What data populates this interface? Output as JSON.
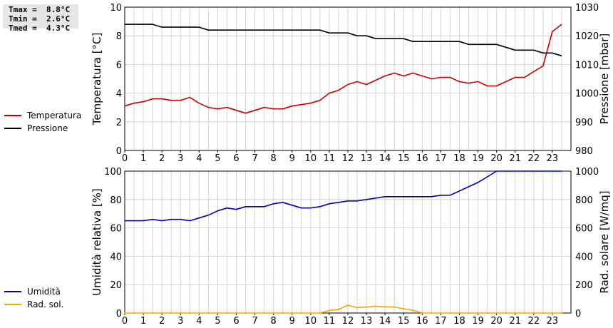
{
  "stats": {
    "tmax": "Tmax =  8.8°C",
    "tmin": "Tmin =  2.6°C",
    "tmed": "Tmed =  4.3°C"
  },
  "legend_top": [
    {
      "label": "Temperatura",
      "color": "#cc0000"
    },
    {
      "label": "Pressione",
      "color": "#000000"
    }
  ],
  "legend_bottom": [
    {
      "label": "Umidità",
      "color": "#0000bb"
    },
    {
      "label": "Rad. sol.",
      "color": "#ffa500"
    }
  ],
  "chart_data": [
    {
      "type": "line",
      "ylabel": "Temperatura [°C]",
      "y2label": "Pressione [mbar]",
      "xlim": [
        0,
        24
      ],
      "ylim": [
        0,
        10
      ],
      "y2lim": [
        980,
        1030
      ],
      "x_ticks": [
        "0",
        "1",
        "2",
        "3",
        "4",
        "5",
        "6",
        "7",
        "8",
        "9",
        "10",
        "11",
        "12",
        "13",
        "14",
        "15",
        "16",
        "17",
        "18",
        "19",
        "20",
        "21",
        "22",
        "23"
      ],
      "y_ticks": [
        "0",
        "2",
        "4",
        "6",
        "8",
        "10"
      ],
      "y2_ticks": [
        "980",
        "990",
        "1000",
        "1010",
        "1020",
        "1030"
      ],
      "grid": true,
      "series": [
        {
          "name": "Temperatura",
          "axis": "left",
          "color": "#cc0000",
          "x": [
            0,
            0.5,
            1,
            1.5,
            2,
            2.5,
            3,
            3.5,
            4,
            4.5,
            5,
            5.5,
            6,
            6.5,
            7,
            7.5,
            8,
            8.5,
            9,
            9.5,
            10,
            10.5,
            11,
            11.5,
            12,
            12.5,
            13,
            13.5,
            14,
            14.5,
            15,
            15.5,
            16,
            16.5,
            17,
            17.5,
            18,
            18.5,
            19,
            19.5,
            20,
            20.5,
            21,
            21.5,
            22,
            22.5,
            23,
            23.5
          ],
          "values": [
            3.1,
            3.3,
            3.4,
            3.6,
            3.6,
            3.5,
            3.5,
            3.7,
            3.3,
            3.0,
            2.9,
            3.0,
            2.8,
            2.6,
            2.8,
            3.0,
            2.9,
            2.9,
            3.1,
            3.2,
            3.3,
            3.5,
            4.0,
            4.2,
            4.6,
            4.8,
            4.6,
            4.9,
            5.2,
            5.4,
            5.2,
            5.4,
            5.2,
            5.0,
            5.1,
            5.1,
            4.8,
            4.7,
            4.8,
            4.5,
            4.5,
            4.8,
            5.1,
            5.1,
            5.5,
            5.9,
            8.3,
            8.8
          ]
        },
        {
          "name": "Pressione",
          "axis": "right",
          "color": "#000000",
          "x": [
            0,
            0.5,
            1,
            1.5,
            2,
            2.5,
            3,
            3.5,
            4,
            4.5,
            5,
            5.5,
            6,
            6.5,
            7,
            7.5,
            8,
            8.5,
            9,
            9.5,
            10,
            10.5,
            11,
            11.5,
            12,
            12.5,
            13,
            13.5,
            14,
            14.5,
            15,
            15.5,
            16,
            16.5,
            17,
            17.5,
            18,
            18.5,
            19,
            19.5,
            20,
            20.5,
            21,
            21.5,
            22,
            22.5,
            23,
            23.5
          ],
          "values": [
            1024,
            1024,
            1024,
            1024,
            1023,
            1023,
            1023,
            1023,
            1023,
            1022,
            1022,
            1022,
            1022,
            1022,
            1022,
            1022,
            1022,
            1022,
            1022,
            1022,
            1022,
            1022,
            1021,
            1021,
            1021,
            1020,
            1020,
            1019,
            1019,
            1019,
            1019,
            1018,
            1018,
            1018,
            1018,
            1018,
            1018,
            1017,
            1017,
            1017,
            1017,
            1016,
            1015,
            1015,
            1015,
            1014,
            1014,
            1013
          ]
        }
      ]
    },
    {
      "type": "line",
      "ylabel": "Umidità relativa [%]",
      "y2label": "Rad. solare [W/mq]",
      "xlim": [
        0,
        24
      ],
      "ylim": [
        0,
        100
      ],
      "y2lim": [
        0,
        1000
      ],
      "x_ticks": [
        "0",
        "1",
        "2",
        "3",
        "4",
        "5",
        "6",
        "7",
        "8",
        "9",
        "10",
        "11",
        "12",
        "13",
        "14",
        "15",
        "16",
        "17",
        "18",
        "19",
        "20",
        "21",
        "22",
        "23"
      ],
      "y_ticks": [
        "0",
        "20",
        "40",
        "60",
        "80",
        "100"
      ],
      "y2_ticks": [
        "0",
        "200",
        "400",
        "600",
        "800",
        "1000"
      ],
      "grid": true,
      "series": [
        {
          "name": "Umidità",
          "axis": "left",
          "color": "#0000bb",
          "x": [
            0,
            0.5,
            1,
            1.5,
            2,
            2.5,
            3,
            3.5,
            4,
            4.5,
            5,
            5.5,
            6,
            6.5,
            7,
            7.5,
            8,
            8.5,
            9,
            9.5,
            10,
            10.5,
            11,
            11.5,
            12,
            12.5,
            13,
            13.5,
            14,
            14.5,
            15,
            15.5,
            16,
            16.5,
            17,
            17.5,
            18,
            18.5,
            19,
            19.5,
            20,
            20.5,
            21,
            21.5,
            22,
            22.5,
            23,
            23.5
          ],
          "values": [
            65,
            65,
            65,
            66,
            65,
            66,
            66,
            65,
            67,
            69,
            72,
            74,
            73,
            75,
            75,
            75,
            77,
            78,
            76,
            74,
            74,
            75,
            77,
            78,
            79,
            79,
            80,
            81,
            82,
            82,
            82,
            82,
            82,
            82,
            83,
            83,
            86,
            89,
            92,
            96,
            100,
            100,
            100,
            100,
            100,
            100,
            100,
            100
          ]
        },
        {
          "name": "Rad. sol.",
          "axis": "right",
          "color": "#ffa500",
          "x": [
            0,
            0.5,
            1,
            1.5,
            2,
            2.5,
            3,
            3.5,
            4,
            4.5,
            5,
            5.5,
            6,
            6.5,
            7,
            7.5,
            8,
            8.5,
            9,
            9.5,
            10,
            10.5,
            11,
            11.5,
            12,
            12.5,
            13,
            13.5,
            14,
            14.5,
            15,
            15.5,
            16,
            16.5,
            17,
            17.5,
            18,
            18.5,
            19,
            19.5,
            20,
            20.5,
            21,
            21.5,
            22,
            22.5,
            23,
            23.5
          ],
          "values": [
            0,
            0,
            0,
            0,
            0,
            0,
            0,
            0,
            0,
            0,
            0,
            0,
            0,
            0,
            0,
            0,
            0,
            0,
            0,
            0,
            0,
            0,
            18,
            25,
            55,
            38,
            42,
            48,
            44,
            42,
            30,
            20,
            0,
            0,
            0,
            0,
            0,
            0,
            0,
            0,
            0,
            0,
            0,
            0,
            0,
            0,
            0,
            0
          ]
        }
      ]
    }
  ]
}
